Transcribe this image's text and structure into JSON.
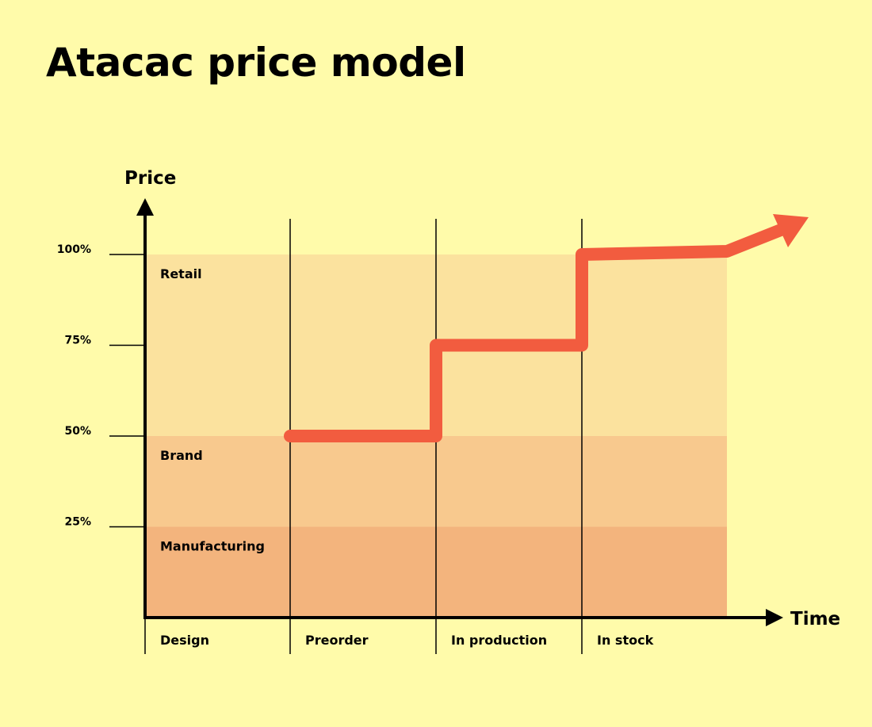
{
  "title": "Atacac price model",
  "colors": {
    "background": "#FFFBAA",
    "retail_band": "#FBE29E",
    "brand_band": "#F8C98E",
    "manufacturing_band": "#F3B47D",
    "price_line": "#F25C3F",
    "axis": "#000000"
  },
  "chart_data": {
    "type": "line",
    "title": "Atacac price model",
    "xlabel": "Time",
    "ylabel": "Price",
    "ylim": [
      0,
      100
    ],
    "y_ticks": [
      {
        "value": 100,
        "label": "100%"
      },
      {
        "value": 75,
        "label": "75%"
      },
      {
        "value": 50,
        "label": "50%"
      },
      {
        "value": 25,
        "label": "25%"
      }
    ],
    "phases": [
      "Design",
      "Preorder",
      "In production",
      "In stock"
    ],
    "bands": [
      {
        "name": "Manufacturing",
        "from": 0,
        "to": 25,
        "color": "#F3B47D"
      },
      {
        "name": "Brand",
        "from": 25,
        "to": 50,
        "color": "#F8C98E"
      },
      {
        "name": "Retail",
        "from": 50,
        "to": 100,
        "color": "#FBE29E"
      }
    ],
    "series": [
      {
        "values": [
          {
            "phase": "Preorder",
            "price": 50
          },
          {
            "phase": "In production",
            "price": 75
          },
          {
            "phase": "In stock",
            "price": 100
          }
        ]
      }
    ],
    "grid": false,
    "legend": "none"
  }
}
